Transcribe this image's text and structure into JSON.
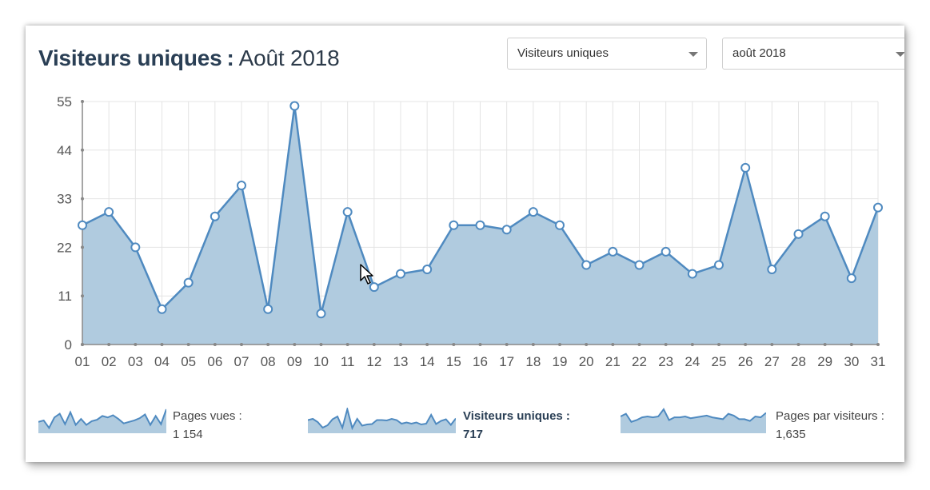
{
  "header": {
    "title_main": "Visiteurs uniques",
    "title_sep": ":",
    "title_period": "Août 2018"
  },
  "controls": {
    "metric_select": "Visiteurs uniques",
    "month_select": "août 2018"
  },
  "colors": {
    "line": "#4f8ac0",
    "fill": "#b0cbdf",
    "grid": "#e4e4e4",
    "axis": "#888888",
    "tick_text": "#555555"
  },
  "chart_data": {
    "type": "area",
    "categories": [
      "01",
      "02",
      "03",
      "04",
      "05",
      "06",
      "07",
      "08",
      "09",
      "10",
      "11",
      "12",
      "13",
      "14",
      "15",
      "16",
      "17",
      "18",
      "19",
      "20",
      "21",
      "22",
      "23",
      "24",
      "25",
      "26",
      "27",
      "28",
      "29",
      "30",
      "31"
    ],
    "values": [
      27,
      30,
      22,
      8,
      14,
      29,
      36,
      8,
      54,
      7,
      30,
      13,
      16,
      17,
      27,
      27,
      26,
      30,
      27,
      18,
      21,
      18,
      21,
      16,
      18,
      40,
      17,
      25,
      29,
      15,
      31
    ],
    "yticks": [
      0,
      11,
      22,
      33,
      44,
      55
    ],
    "ylim": [
      0,
      55
    ],
    "grid": true,
    "markers": true,
    "legend": "none"
  },
  "summaries": [
    {
      "label": "Pages vues :",
      "value": "1 154",
      "sparkline": [
        1.2,
        1.4,
        0.4,
        1.8,
        2.3,
        0.9,
        2.5,
        0.8,
        1.6,
        0.8,
        1.3,
        1.5,
        2.0,
        1.8,
        2.1,
        1.6,
        1.0,
        1.2,
        1.4,
        1.7,
        2.2,
        0.8,
        2.0,
        0.9,
        2.9
      ]
    },
    {
      "label": "Visiteurs uniques :",
      "value": "717",
      "sparkline": [
        27,
        30,
        22,
        8,
        14,
        29,
        36,
        8,
        54,
        7,
        30,
        13,
        16,
        17,
        27,
        27,
        26,
        30,
        27,
        18,
        21,
        18,
        21,
        16,
        18,
        40,
        17,
        25,
        29,
        15,
        31
      ]
    },
    {
      "label": "Pages par visiteurs :",
      "value": "1,635",
      "sparkline": [
        1.6,
        1.9,
        1.0,
        1.2,
        1.5,
        1.6,
        1.5,
        1.6,
        2.4,
        1.2,
        1.5,
        1.5,
        1.6,
        1.4,
        1.5,
        1.6,
        1.7,
        1.5,
        1.4,
        1.3,
        1.9,
        1.7,
        1.3,
        1.3,
        1.1,
        1.6,
        1.5,
        2.0
      ]
    }
  ]
}
